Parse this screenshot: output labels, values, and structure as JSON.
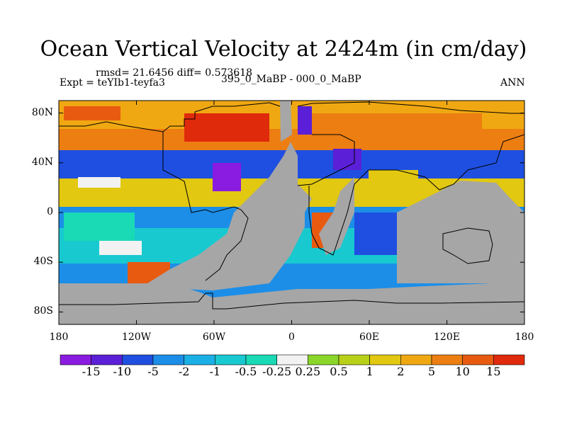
{
  "title": "Ocean Vertical Velocity at 2424m (in cm/day)",
  "stats": "rmsd= 21.6456 diff= 0.573618",
  "experiment": "Expt = teYIb1-teyfa3",
  "comparison": "395_0_MaBP - 000_0_MaBP",
  "season": "ANN",
  "map": {
    "lat_ticks": [
      "80N",
      "40N",
      "0",
      "40S",
      "80S"
    ],
    "lon_ticks": [
      "180",
      "120W",
      "60W",
      "0",
      "60E",
      "120E",
      "180"
    ]
  },
  "colorbar": {
    "labels": [
      "-15",
      "-10",
      "-5",
      "-2",
      "-1",
      "-0.5",
      "-0.25",
      "0.25",
      "0.5",
      "1",
      "2",
      "5",
      "10",
      "15"
    ],
    "colors": [
      "#8a1be0",
      "#5a1fd6",
      "#1f4fe0",
      "#1c8ee8",
      "#1ab0e6",
      "#18c9d0",
      "#1ad9b5",
      "#f2f2f2",
      "#8ad62a",
      "#b8d018",
      "#e2c810",
      "#f0a812",
      "#ec7e12",
      "#e85a10",
      "#e02a0c"
    ],
    "land_color": "#a6a6a6"
  }
}
